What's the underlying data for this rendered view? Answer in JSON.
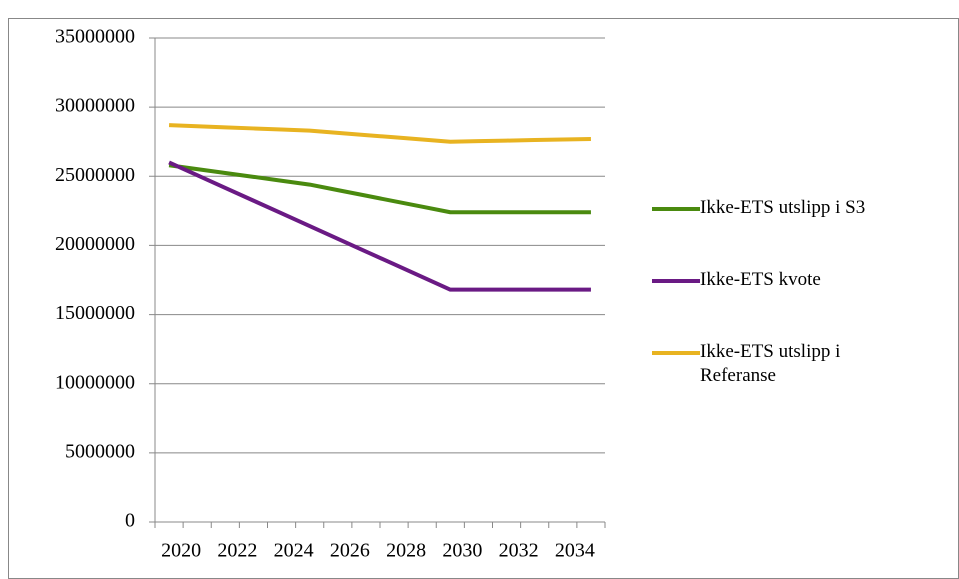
{
  "chart_data": {
    "type": "line",
    "categories": [
      "2020",
      null,
      "2022",
      null,
      "2024",
      null,
      "2026",
      null,
      "2028",
      null,
      "2030",
      null,
      "2032",
      null,
      "2034",
      null
    ],
    "series": [
      {
        "name": "Ikke-ETS utslipp i S3",
        "color": "#4a8a0f",
        "values": [
          25800000,
          25520000,
          25240000,
          24960000,
          24680000,
          24400000,
          24000000,
          23600000,
          23200000,
          22800000,
          22400000,
          22400000,
          22400000,
          22400000,
          22400000,
          22400000
        ]
      },
      {
        "name": "Ikke-ETS kvote",
        "color": "#6a1a84",
        "values": [
          26000000,
          25080000,
          24160000,
          23240000,
          22320000,
          21400000,
          20480000,
          19560000,
          18640000,
          17720000,
          16800000,
          16800000,
          16800000,
          16800000,
          16800000,
          16800000
        ]
      },
      {
        "name": "Ikke-ETS utslipp i Referanse",
        "color": "#e8b321",
        "values": [
          28700000,
          28620000,
          28540000,
          28460000,
          28380000,
          28300000,
          28140000,
          27980000,
          27820000,
          27660000,
          27500000,
          27540000,
          27580000,
          27620000,
          27660000,
          27700000
        ]
      }
    ],
    "ylim": [
      0,
      35000000
    ],
    "yticks": [
      0,
      5000000,
      10000000,
      15000000,
      20000000,
      25000000,
      30000000,
      35000000
    ],
    "grid": true,
    "legend": "right"
  }
}
